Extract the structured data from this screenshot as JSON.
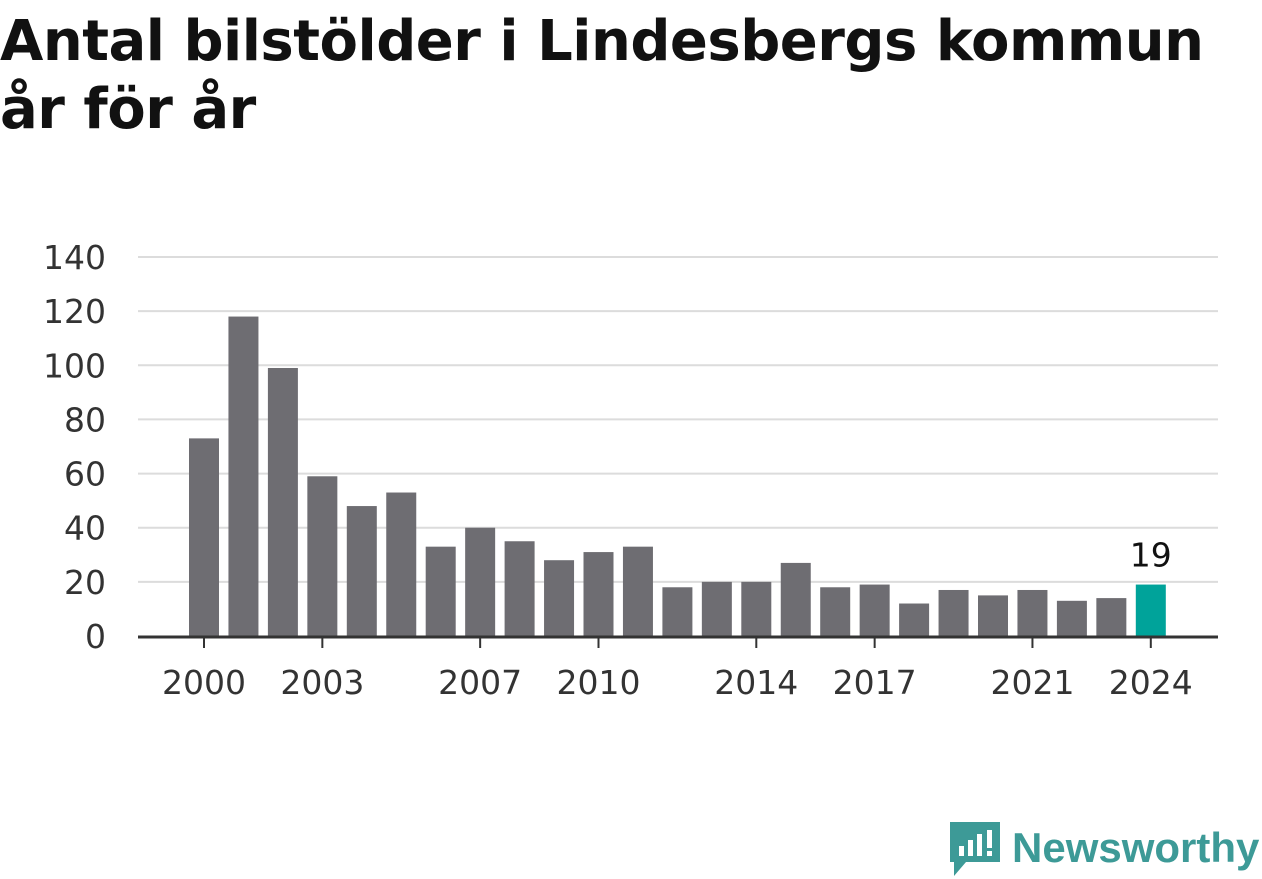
{
  "title": {
    "line1": "Antal bilstölder i Lindesbergs kommun",
    "line2": "år för år"
  },
  "brand": {
    "name": "Newsworthy",
    "icon": "newsworthy-logo-icon",
    "color": "#3d9a97"
  },
  "colors": {
    "bar": "#6e6d72",
    "highlight": "#00a39a",
    "grid": "#dcdcdc",
    "axis": "#333333",
    "tick_text": "#333333"
  },
  "chart_data": {
    "type": "bar",
    "title": "Antal bilstölder i Lindesbergs kommun år för år",
    "xlabel": "",
    "ylabel": "",
    "categories": [
      "2000",
      "2001",
      "2002",
      "2003",
      "2004",
      "2005",
      "2006",
      "2007",
      "2008",
      "2009",
      "2010",
      "2011",
      "2012",
      "2013",
      "2014",
      "2015",
      "2016",
      "2017",
      "2018",
      "2019",
      "2020",
      "2021",
      "2022",
      "2023",
      "2024"
    ],
    "values": [
      73,
      118,
      99,
      59,
      48,
      53,
      33,
      40,
      35,
      28,
      31,
      33,
      18,
      20,
      20,
      27,
      18,
      19,
      12,
      17,
      15,
      17,
      13,
      14,
      19
    ],
    "x_tick_labels": [
      "2000",
      "2003",
      "2007",
      "2010",
      "2014",
      "2017",
      "2021",
      "2024"
    ],
    "y_ticks": [
      0,
      20,
      40,
      60,
      80,
      100,
      120,
      140
    ],
    "ylim": [
      0,
      140
    ],
    "grid": true,
    "highlight_category": "2024",
    "highlight_label": "19",
    "legend": "none"
  }
}
